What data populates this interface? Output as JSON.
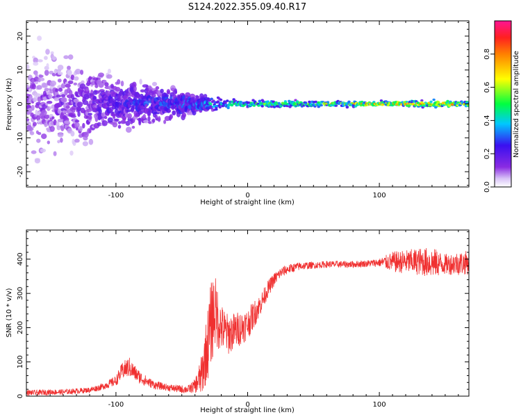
{
  "figure": {
    "title": "S124.2022.355.09.40.R17"
  },
  "colors": {
    "snr_line": "#f03030",
    "colormap": [
      "#ffffff",
      "#d9c4f7",
      "#8a2be2",
      "#3a10f0",
      "#00c8ff",
      "#00ff40",
      "#ffff00",
      "#ff2020",
      "#ff1493"
    ]
  },
  "chart_data": [
    {
      "type": "heatmap",
      "title": "",
      "xlabel": "Height of straight line (km)",
      "ylabel": "Frequency (Hz)",
      "xlim": [
        -168,
        168
      ],
      "ylim": [
        -24.5,
        24.5
      ],
      "x_ticks": [
        -100,
        0,
        100
      ],
      "x_tick_labels": [
        "-100",
        "0",
        "100"
      ],
      "y_ticks": [
        -20,
        -10,
        0,
        10,
        20
      ],
      "y_tick_labels": [
        "-20",
        "-10",
        "0",
        "10",
        "20"
      ],
      "colorbar": {
        "label": "Normalized spectral amplitude",
        "range": [
          0.0,
          1.0
        ],
        "ticks": [
          0.0,
          0.2,
          0.4,
          0.6,
          0.8
        ],
        "tick_labels": [
          "0.0",
          "0.2",
          "0.4",
          "0.6",
          "0.8"
        ]
      },
      "description_points": [
        {
          "x": -160,
          "spread_hz": 22,
          "peak_amplitude": 0.15
        },
        {
          "x": -120,
          "spread_hz": 14,
          "peak_amplitude": 0.22
        },
        {
          "x": -90,
          "spread_hz": 9,
          "peak_amplitude": 0.3
        },
        {
          "x": -60,
          "spread_hz": 6,
          "peak_amplitude": 0.35
        },
        {
          "x": -35,
          "spread_hz": 3,
          "peak_amplitude": 0.45
        },
        {
          "x": 0,
          "spread_hz": 1.5,
          "peak_amplitude": 0.65
        },
        {
          "x": 50,
          "spread_hz": 1.2,
          "peak_amplitude": 0.75
        },
        {
          "x": 100,
          "spread_hz": 1,
          "peak_amplitude": 0.92
        },
        {
          "x": 140,
          "spread_hz": 1.5,
          "peak_amplitude": 0.85
        },
        {
          "x": 165,
          "spread_hz": 1.2,
          "peak_amplitude": 0.9
        }
      ]
    },
    {
      "type": "line",
      "title": "",
      "xlabel": "Height of straight line (km)",
      "ylabel": "SNR (10 * v/v)",
      "xlim": [
        -168,
        168
      ],
      "ylim": [
        0,
        485
      ],
      "x_ticks": [
        -100,
        0,
        100
      ],
      "x_tick_labels": [
        "-100",
        "0",
        "100"
      ],
      "y_ticks": [
        0,
        100,
        200,
        300,
        400
      ],
      "y_tick_labels": [
        "0",
        "100",
        "200",
        "300",
        "400"
      ],
      "grid": false,
      "series": [
        {
          "x": [
            -168,
            -160,
            -150,
            -140,
            -130,
            -120,
            -110,
            -100,
            -95,
            -90,
            -85,
            -80,
            -75,
            -70,
            -60,
            -50,
            -45,
            -40,
            -35,
            -30,
            -27,
            -25,
            -20,
            -15,
            -10,
            -5,
            0,
            5,
            10,
            15,
            20,
            25,
            30,
            40,
            50,
            60,
            70,
            80,
            90,
            100,
            110,
            120,
            130,
            140,
            150,
            160,
            168
          ],
          "y": [
            10,
            10,
            12,
            12,
            15,
            18,
            28,
            45,
            75,
            85,
            65,
            50,
            40,
            32,
            25,
            20,
            20,
            30,
            60,
            160,
            230,
            250,
            200,
            180,
            190,
            200,
            210,
            240,
            270,
            310,
            340,
            360,
            370,
            380,
            382,
            385,
            385,
            385,
            387,
            390,
            392,
            392,
            393,
            390,
            385,
            388,
            390
          ],
          "noise": [
            8,
            8,
            8,
            8,
            8,
            8,
            10,
            15,
            25,
            30,
            22,
            18,
            14,
            12,
            10,
            12,
            12,
            20,
            60,
            110,
            130,
            110,
            70,
            60,
            55,
            50,
            45,
            40,
            30,
            25,
            20,
            16,
            14,
            12,
            10,
            10,
            10,
            10,
            10,
            12,
            30,
            35,
            40,
            45,
            30,
            35,
            35
          ]
        }
      ]
    }
  ]
}
